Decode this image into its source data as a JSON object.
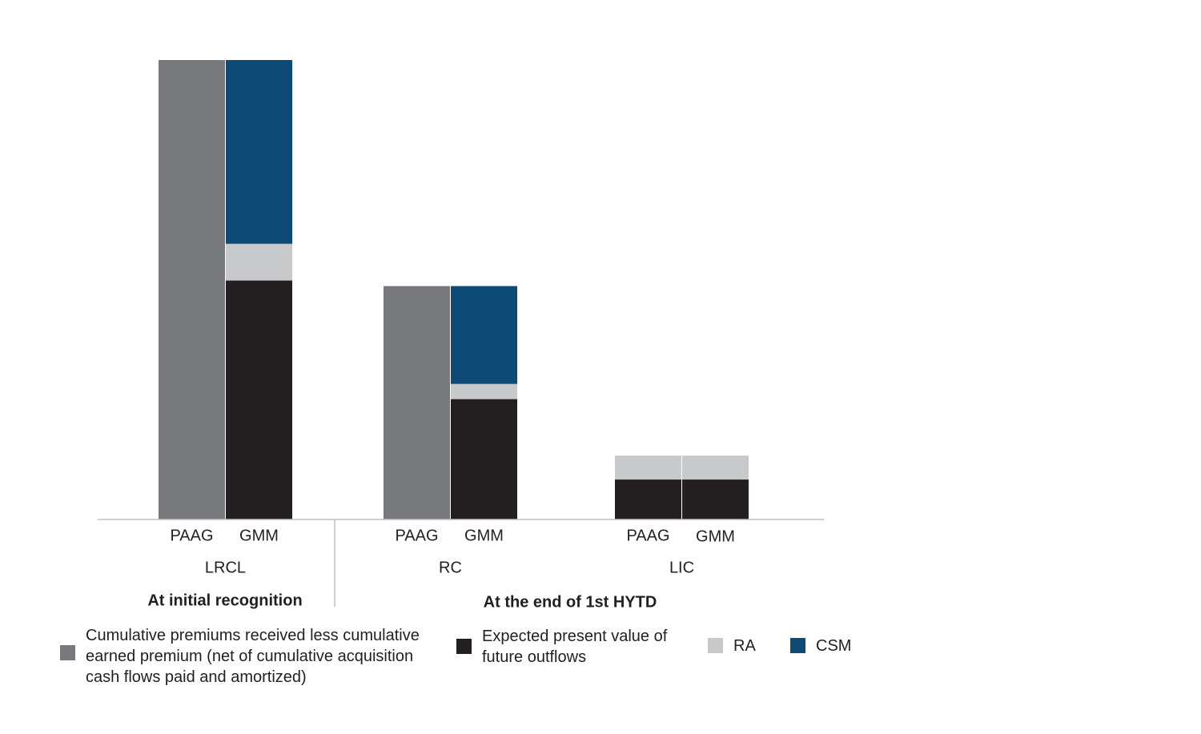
{
  "chart_data": {
    "type": "bar",
    "stacked": true,
    "ylim": [
      0,
      100
    ],
    "grid": false,
    "legend_position": "bottom",
    "colors": {
      "cumulative_premiums": "#77787b",
      "epv_outflows": "#231f20",
      "ra": "#c8c9ca",
      "csm": "#0e4a76"
    },
    "series": [
      {
        "key": "cumulative_premiums",
        "name": "Cumulative premiums received less cumulative earned premium (net of cumulative acquisition cash flows paid and amortized)"
      },
      {
        "key": "epv_outflows",
        "name": "Expected present value of future outflows"
      },
      {
        "key": "ra",
        "name": "RA"
      },
      {
        "key": "csm",
        "name": "CSM"
      }
    ],
    "groups": [
      {
        "label": "LRCL",
        "bars": [
          {
            "label": "PAAG",
            "segments": {
              "cumulative_premiums": 100
            }
          },
          {
            "label": "GMM",
            "segments": {
              "epv_outflows": 52,
              "ra": 8,
              "csm": 40
            }
          }
        ]
      },
      {
        "label": "RC",
        "bars": [
          {
            "label": "PAAG",
            "segments": {
              "cumulative_premiums": 50.8
            }
          },
          {
            "label": "GMM",
            "segments": {
              "epv_outflows": 26.2,
              "ra": 3.3,
              "csm": 21.3
            }
          }
        ]
      },
      {
        "label": "LIC",
        "bars": [
          {
            "label": "PAAG",
            "segments": {
              "epv_outflows": 8.7,
              "ra": 5.2
            }
          },
          {
            "label": "GMM",
            "segments": {
              "epv_outflows": 8.7,
              "ra": 5.2
            }
          }
        ]
      }
    ],
    "sections": [
      {
        "label": "At initial recognition"
      },
      {
        "label": "At the end of 1st HYTD"
      }
    ]
  },
  "legend": {
    "items": [
      {
        "key": "cumulative_premiums",
        "lines": [
          "Cumulative premiums received less cumulative",
          "earned premium (net of cumulative acquisition",
          "cash flows paid and amortized)"
        ]
      },
      {
        "key": "epv_outflows",
        "lines": [
          "Expected present value of",
          "future outflows"
        ]
      },
      {
        "key": "ra",
        "lines": [
          "RA"
        ]
      },
      {
        "key": "csm",
        "lines": [
          "CSM"
        ]
      }
    ]
  }
}
